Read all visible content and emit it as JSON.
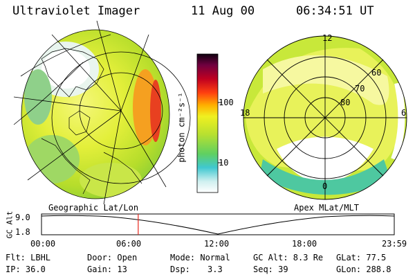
{
  "header": {
    "instrument": "Ultraviolet Imager",
    "date": "11 Aug 00",
    "time": "06:34:51 UT"
  },
  "colorbar": {
    "label": "photon cm⁻²s⁻¹",
    "ticks": [
      "100",
      "10"
    ]
  },
  "left_panel": {
    "caption": "Geographic Lat/Lon"
  },
  "right_panel": {
    "caption": "Apex MLat/MLT",
    "mlt_labels": [
      "12",
      "18",
      "6",
      "0"
    ],
    "lat_labels": [
      "60",
      "70",
      "80"
    ]
  },
  "timeline": {
    "ylabel": "GC Alt",
    "y_ticks": [
      "9.0",
      "1.8"
    ],
    "x_ticks": [
      "00:00",
      "06:00",
      "12:00",
      "18:00",
      "23:59"
    ],
    "marker_hour": 6.58
  },
  "footer": {
    "filter": "Flt: LBHL",
    "door": "Door: Open",
    "mode": "Mode: Normal",
    "gc_alt": "GC Alt: 8.3 Re",
    "glat": "GLat:  77.5",
    "ip": "IP: 36.0",
    "gain": "Gain: 13",
    "dsp_label": "Dsp:",
    "dsp_value": "3.3",
    "seq": "Seq: 39",
    "glon": "GLon: 288.8"
  },
  "colors": {
    "background": "#ffffff",
    "accent_marker": "#e8261c"
  }
}
